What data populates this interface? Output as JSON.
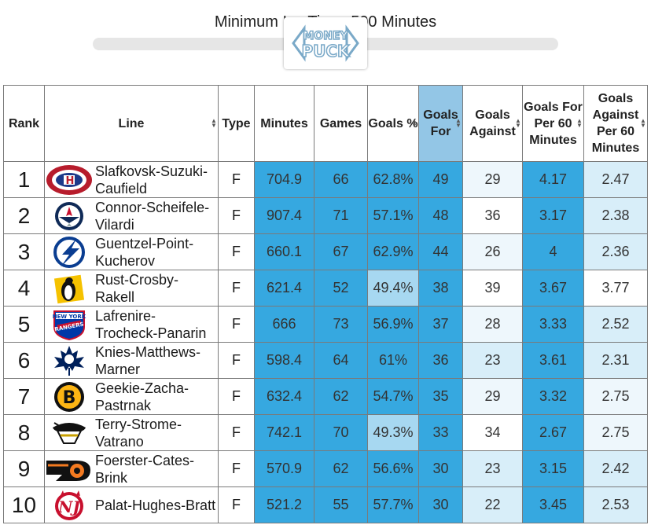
{
  "slider": {
    "label": "Minimum Ice Time: 500 Minutes",
    "value_minutes": 500,
    "logo_text_top": "MONEY",
    "logo_text_bottom": "PUCK"
  },
  "colors": {
    "blue_strong": "#36a8e0",
    "blue_light": "#a7d8f1",
    "blue_pale": "#d8eef9",
    "blue_faint": "#eef7fc",
    "sorted_header": "#93c6e6"
  },
  "table": {
    "headers": [
      {
        "key": "rank",
        "label": "Rank",
        "sortable": false
      },
      {
        "key": "line",
        "label": "Line",
        "sortable": true
      },
      {
        "key": "type",
        "label": "Type",
        "sortable": false
      },
      {
        "key": "minutes",
        "label": "Minutes",
        "sortable": false
      },
      {
        "key": "games",
        "label": "Games",
        "sortable": false
      },
      {
        "key": "goals_pct",
        "label": "Goals %",
        "sortable": true
      },
      {
        "key": "goals_for",
        "label": "Goals For",
        "sortable": true,
        "sorted": true
      },
      {
        "key": "goals_against",
        "label": "Goals Against",
        "sortable": true
      },
      {
        "key": "gf60",
        "label": "Goals For Per 60 Minutes",
        "sortable": true
      },
      {
        "key": "ga60",
        "label": "Goals Against Per 60 Minutes",
        "sortable": true
      }
    ],
    "rows": [
      {
        "rank": "1",
        "team_icon": "canadiens-logo-icon",
        "line": "Slafkovsk-Suzuki-Caufield",
        "type": "F",
        "minutes": "704.9",
        "games": "66",
        "goals_pct": "62.8%",
        "goals_for": "49",
        "goals_against": "29",
        "gf60": "4.17",
        "ga60": "2.47",
        "heat": {
          "minutes": "s",
          "games": "s",
          "goals_pct": "s",
          "goals_for": "s",
          "goals_against": "f",
          "gf60": "s",
          "ga60": "p"
        }
      },
      {
        "rank": "2",
        "team_icon": "jets-logo-icon",
        "line": "Connor-Scheifele-Vilardi",
        "type": "F",
        "minutes": "907.4",
        "games": "71",
        "goals_pct": "57.1%",
        "goals_for": "48",
        "goals_against": "36",
        "gf60": "3.17",
        "ga60": "2.38",
        "heat": {
          "minutes": "s",
          "games": "s",
          "goals_pct": "s",
          "goals_for": "s",
          "goals_against": "w",
          "gf60": "s",
          "ga60": "p"
        }
      },
      {
        "rank": "3",
        "team_icon": "lightning-logo-icon",
        "line": "Guentzel-Point-Kucherov",
        "type": "F",
        "minutes": "660.1",
        "games": "67",
        "goals_pct": "62.9%",
        "goals_for": "44",
        "goals_against": "26",
        "gf60": "4",
        "ga60": "2.36",
        "heat": {
          "minutes": "s",
          "games": "s",
          "goals_pct": "s",
          "goals_for": "s",
          "goals_against": "f",
          "gf60": "s",
          "ga60": "p"
        }
      },
      {
        "rank": "4",
        "team_icon": "penguins-logo-icon",
        "line": "Rust-Crosby-Rakell",
        "type": "F",
        "minutes": "621.4",
        "games": "52",
        "goals_pct": "49.4%",
        "goals_for": "38",
        "goals_against": "39",
        "gf60": "3.67",
        "ga60": "3.77",
        "heat": {
          "minutes": "s",
          "games": "s",
          "goals_pct": "l",
          "goals_for": "s",
          "goals_against": "w",
          "gf60": "s",
          "ga60": "w"
        }
      },
      {
        "rank": "5",
        "team_icon": "rangers-logo-icon",
        "line": "Lafrenire-Trocheck-Panarin",
        "type": "F",
        "minutes": "666",
        "games": "73",
        "goals_pct": "56.9%",
        "goals_for": "37",
        "goals_against": "28",
        "gf60": "3.33",
        "ga60": "2.52",
        "heat": {
          "minutes": "s",
          "games": "s",
          "goals_pct": "s",
          "goals_for": "s",
          "goals_against": "f",
          "gf60": "s",
          "ga60": "p"
        }
      },
      {
        "rank": "6",
        "team_icon": "maple-leafs-logo-icon",
        "line": "Knies-Matthews-Marner",
        "type": "F",
        "minutes": "598.4",
        "games": "64",
        "goals_pct": "61%",
        "goals_for": "36",
        "goals_against": "23",
        "gf60": "3.61",
        "ga60": "2.31",
        "heat": {
          "minutes": "s",
          "games": "s",
          "goals_pct": "s",
          "goals_for": "s",
          "goals_against": "p",
          "gf60": "s",
          "ga60": "p"
        }
      },
      {
        "rank": "7",
        "team_icon": "bruins-logo-icon",
        "line": "Geekie-Zacha-Pastrnak",
        "type": "F",
        "minutes": "632.4",
        "games": "62",
        "goals_pct": "54.7%",
        "goals_for": "35",
        "goals_against": "29",
        "gf60": "3.32",
        "ga60": "2.75",
        "heat": {
          "minutes": "s",
          "games": "s",
          "goals_pct": "s",
          "goals_for": "s",
          "goals_against": "f",
          "gf60": "s",
          "ga60": "f"
        }
      },
      {
        "rank": "8",
        "team_icon": "ducks-logo-icon",
        "line": "Terry-Strome-Vatrano",
        "type": "F",
        "minutes": "742.1",
        "games": "70",
        "goals_pct": "49.3%",
        "goals_for": "33",
        "goals_against": "34",
        "gf60": "2.67",
        "ga60": "2.75",
        "heat": {
          "minutes": "s",
          "games": "s",
          "goals_pct": "l",
          "goals_for": "s",
          "goals_against": "w",
          "gf60": "s",
          "ga60": "f"
        }
      },
      {
        "rank": "9",
        "team_icon": "flyers-logo-icon",
        "line": "Foerster-Cates-Brink",
        "type": "F",
        "minutes": "570.9",
        "games": "62",
        "goals_pct": "56.6%",
        "goals_for": "30",
        "goals_against": "23",
        "gf60": "3.15",
        "ga60": "2.42",
        "heat": {
          "minutes": "s",
          "games": "s",
          "goals_pct": "s",
          "goals_for": "s",
          "goals_against": "p",
          "gf60": "s",
          "ga60": "p"
        }
      },
      {
        "rank": "10",
        "team_icon": "devils-logo-icon",
        "line": "Palat-Hughes-Bratt",
        "type": "F",
        "minutes": "521.2",
        "games": "55",
        "goals_pct": "57.7%",
        "goals_for": "30",
        "goals_against": "22",
        "gf60": "3.45",
        "ga60": "2.53",
        "heat": {
          "minutes": "s",
          "games": "s",
          "goals_pct": "s",
          "goals_for": "s",
          "goals_against": "p",
          "gf60": "s",
          "ga60": "p"
        }
      }
    ]
  }
}
